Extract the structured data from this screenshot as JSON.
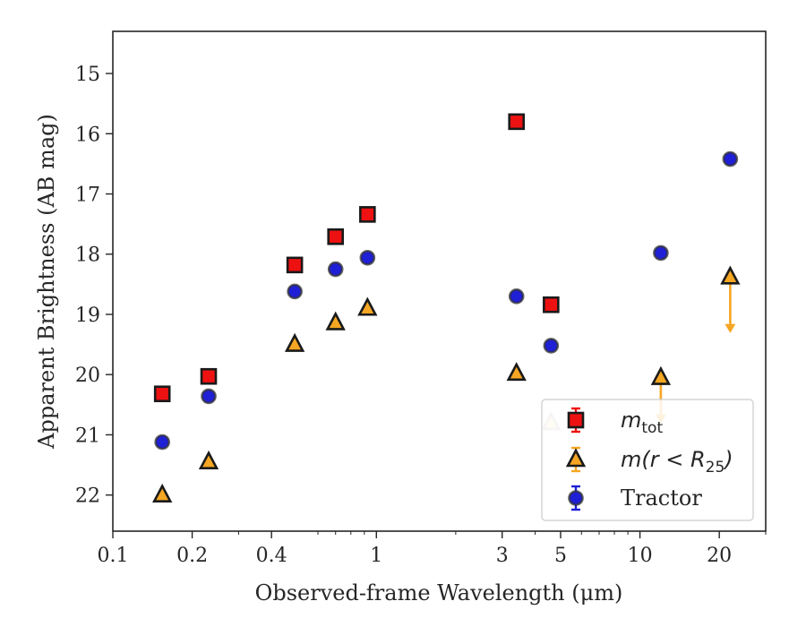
{
  "chart_data": {
    "type": "scatter",
    "xlabel": "Observed-frame Wavelength (μm)",
    "ylabel": "Apparent Brightness (AB mag)",
    "xscale": "log",
    "xlim": [
      0.1,
      30
    ],
    "ylim": [
      22.6,
      14.3
    ],
    "y_inverted": true,
    "x_ticks": [
      0.1,
      0.2,
      0.4,
      1,
      3,
      5,
      10,
      20
    ],
    "x_tick_labels": [
      "0.1",
      "0.2",
      "0.4",
      "1",
      "3",
      "5",
      "10",
      "20"
    ],
    "y_ticks": [
      15,
      16,
      17,
      18,
      19,
      20,
      21,
      22
    ],
    "y_tick_labels": [
      "15",
      "16",
      "17",
      "18",
      "19",
      "20",
      "21",
      "22"
    ],
    "grid": false,
    "legend_position": "bottom-right",
    "series": [
      {
        "name": "m_tot",
        "label_main": "m",
        "label_sub": "tot",
        "marker": "square",
        "color": "#ee1111",
        "x": [
          0.154,
          0.231,
          0.49,
          0.7,
          0.925,
          3.4,
          4.6
        ],
        "y": [
          20.32,
          20.03,
          18.18,
          17.71,
          17.34,
          15.8,
          18.84
        ]
      },
      {
        "name": "m(r < R25)",
        "label_main": "m(r < R",
        "label_sub": "25",
        "marker": "triangle",
        "color": "#f5a623",
        "x": [
          0.154,
          0.231,
          0.49,
          0.7,
          0.925,
          3.4,
          4.6,
          12.0,
          22.0
        ],
        "y": [
          22.0,
          21.45,
          19.5,
          19.14,
          18.9,
          19.98,
          20.8,
          20.05,
          18.38
        ],
        "faded": [
          false,
          false,
          false,
          false,
          false,
          false,
          true,
          false,
          false
        ],
        "limits": [
          {
            "x": 12.0,
            "from": 20.05,
            "to": 20.78
          },
          {
            "x": 22.0,
            "from": 18.38,
            "to": 19.28
          }
        ]
      },
      {
        "name": "Tractor",
        "label_main": "Tractor",
        "marker": "circle",
        "color": "#1f1fd6",
        "x": [
          0.154,
          0.231,
          0.49,
          0.7,
          0.925,
          3.4,
          4.6,
          12.0,
          22.0
        ],
        "y": [
          21.12,
          20.36,
          18.62,
          18.25,
          18.06,
          18.7,
          19.52,
          17.98,
          16.42
        ]
      }
    ]
  }
}
